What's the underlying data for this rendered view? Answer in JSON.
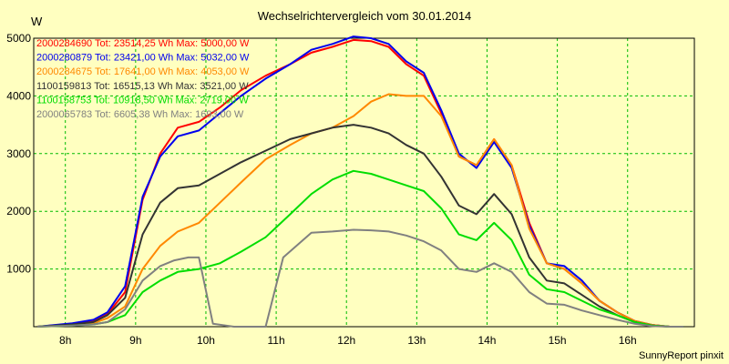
{
  "chart_data": {
    "type": "line",
    "title": "Wechselrichtervergleich vom 30.01.2014",
    "y_unit": "W",
    "footer": "SunnyReport pinxit",
    "xlim": [
      7.55,
      16.95
    ],
    "ylim": [
      0,
      5000
    ],
    "grid": true,
    "legend_placement": "top-left",
    "x_ticks": [
      {
        "value": 8,
        "label": "8h"
      },
      {
        "value": 9,
        "label": "9h"
      },
      {
        "value": 10,
        "label": "10h"
      },
      {
        "value": 11,
        "label": "11h"
      },
      {
        "value": 12,
        "label": "12h"
      },
      {
        "value": 13,
        "label": "13h"
      },
      {
        "value": 14,
        "label": "14h"
      },
      {
        "value": 15,
        "label": "15h"
      },
      {
        "value": 16,
        "label": "16h"
      }
    ],
    "y_ticks": [
      {
        "value": 1000,
        "label": "1000"
      },
      {
        "value": 2000,
        "label": "2000"
      },
      {
        "value": 3000,
        "label": "3000"
      },
      {
        "value": 4000,
        "label": "4000"
      },
      {
        "value": 5000,
        "label": "5000"
      }
    ],
    "series": [
      {
        "name": "2000284690 Tot: 23514,25 Wh Max: 5000,00 W",
        "color": "#ff0000",
        "x": [
          7.6,
          8.1,
          8.4,
          8.6,
          8.85,
          9.1,
          9.35,
          9.6,
          9.9,
          10.2,
          10.5,
          10.85,
          11.2,
          11.5,
          11.8,
          12.1,
          12.35,
          12.6,
          12.85,
          13.1,
          13.35,
          13.6,
          13.85,
          14.1,
          14.35,
          14.6,
          14.85,
          15.1,
          15.35,
          15.6,
          15.85,
          16.1,
          16.35,
          16.6,
          16.8
        ],
        "y": [
          0,
          50,
          100,
          220,
          600,
          2200,
          3000,
          3450,
          3550,
          3800,
          4100,
          4350,
          4550,
          4750,
          4850,
          4970,
          4950,
          4850,
          4550,
          4350,
          3700,
          2950,
          2800,
          3250,
          2800,
          1800,
          1100,
          1000,
          750,
          450,
          250,
          100,
          30,
          0,
          0
        ]
      },
      {
        "name": "2000280879 Tot: 23421,00 Wh Max: 5032,00 W",
        "color": "#0000ee",
        "x": [
          7.6,
          8.1,
          8.4,
          8.6,
          8.85,
          9.1,
          9.35,
          9.6,
          9.9,
          10.2,
          10.5,
          10.85,
          11.2,
          11.5,
          11.8,
          12.1,
          12.35,
          12.6,
          12.85,
          13.1,
          13.35,
          13.6,
          13.85,
          14.1,
          14.35,
          14.6,
          14.85,
          15.1,
          15.35,
          15.6,
          15.85,
          16.1,
          16.35,
          16.6,
          16.8
        ],
        "y": [
          0,
          60,
          120,
          250,
          700,
          2250,
          2950,
          3300,
          3400,
          3700,
          4000,
          4300,
          4550,
          4800,
          4900,
          5030,
          5000,
          4900,
          4600,
          4400,
          3750,
          3000,
          2750,
          3200,
          2750,
          1750,
          1100,
          1050,
          800,
          450,
          250,
          100,
          30,
          0,
          0
        ]
      },
      {
        "name": "2000284675 Tot: 17641,00 Wh Max: 4053,00 W",
        "color": "#ff8800",
        "x": [
          7.6,
          8.1,
          8.4,
          8.6,
          8.85,
          9.1,
          9.35,
          9.6,
          9.9,
          10.2,
          10.5,
          10.85,
          11.2,
          11.5,
          11.8,
          12.1,
          12.35,
          12.6,
          12.85,
          13.1,
          13.35,
          13.6,
          13.85,
          14.1,
          14.35,
          14.6,
          14.85,
          15.1,
          15.35,
          15.6,
          15.85,
          16.1,
          16.35,
          16.6,
          16.8
        ],
        "y": [
          0,
          30,
          60,
          150,
          350,
          1000,
          1400,
          1650,
          1800,
          2150,
          2500,
          2900,
          3150,
          3350,
          3450,
          3650,
          3900,
          4030,
          4000,
          4000,
          3650,
          2950,
          2800,
          3250,
          2800,
          1700,
          1100,
          1000,
          750,
          450,
          250,
          100,
          30,
          0,
          0
        ]
      },
      {
        "name": "1100159813 Tot: 16515,13 Wh Max: 3521,00 W",
        "color": "#333333",
        "x": [
          7.6,
          8.1,
          8.4,
          8.6,
          8.85,
          9.1,
          9.35,
          9.6,
          9.9,
          10.2,
          10.5,
          10.85,
          11.2,
          11.5,
          11.8,
          12.1,
          12.35,
          12.6,
          12.85,
          13.1,
          13.35,
          13.6,
          13.85,
          14.1,
          14.35,
          14.6,
          14.85,
          15.1,
          15.35,
          15.6,
          15.85,
          16.1,
          16.35,
          16.6,
          16.8
        ],
        "y": [
          0,
          40,
          80,
          200,
          500,
          1600,
          2150,
          2400,
          2450,
          2650,
          2850,
          3050,
          3250,
          3350,
          3450,
          3500,
          3450,
          3350,
          3150,
          3000,
          2600,
          2100,
          1950,
          2300,
          1950,
          1200,
          800,
          750,
          550,
          350,
          200,
          80,
          20,
          0,
          0
        ]
      },
      {
        "name": "1100158753 Tot: 10918,50 Wh Max: 2719,00 W",
        "color": "#00dd00",
        "x": [
          7.6,
          8.1,
          8.4,
          8.6,
          8.85,
          9.1,
          9.35,
          9.6,
          9.9,
          10.2,
          10.5,
          10.85,
          11.2,
          11.5,
          11.8,
          12.1,
          12.35,
          12.6,
          12.85,
          13.1,
          13.35,
          13.6,
          13.85,
          14.1,
          14.35,
          14.6,
          14.85,
          15.1,
          15.35,
          15.6,
          15.85,
          16.1,
          16.35,
          16.6,
          16.8
        ],
        "y": [
          0,
          20,
          40,
          80,
          200,
          600,
          800,
          950,
          1000,
          1100,
          1300,
          1550,
          1950,
          2300,
          2550,
          2700,
          2650,
          2550,
          2450,
          2350,
          2050,
          1600,
          1500,
          1800,
          1500,
          900,
          650,
          600,
          450,
          300,
          200,
          80,
          20,
          0,
          0
        ]
      },
      {
        "name": "2000065783 Tot: 6605,38 Wh Max: 1693,00 W",
        "color": "#808080",
        "x": [
          7.6,
          8.1,
          8.4,
          8.6,
          8.85,
          9.1,
          9.35,
          9.55,
          9.75,
          9.9,
          10.1,
          10.4,
          10.85,
          11.1,
          11.5,
          11.8,
          12.1,
          12.35,
          12.6,
          12.85,
          13.1,
          13.35,
          13.6,
          13.85,
          14.1,
          14.35,
          14.6,
          14.85,
          15.1,
          15.35,
          15.6,
          15.85,
          16.1,
          16.35,
          16.6,
          16.8
        ],
        "y": [
          0,
          20,
          40,
          80,
          300,
          800,
          1050,
          1150,
          1200,
          1200,
          50,
          0,
          0,
          1200,
          1630,
          1650,
          1680,
          1670,
          1650,
          1580,
          1480,
          1320,
          1000,
          950,
          1100,
          950,
          600,
          400,
          380,
          280,
          200,
          120,
          50,
          10,
          0,
          0
        ]
      }
    ]
  }
}
